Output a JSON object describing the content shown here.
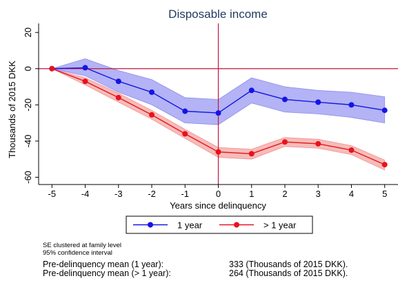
{
  "chart_data": {
    "type": "line",
    "title": "Disposable income",
    "xlabel": "Years since delinquency",
    "ylabel": "Thousands of 2015 DKK",
    "x": [
      -5,
      -4,
      -3,
      -2,
      -1,
      0,
      1,
      2,
      3,
      4,
      5
    ],
    "xlim": [
      -5.4,
      5.4
    ],
    "ylim": [
      -64,
      25
    ],
    "x_ticks": [
      -5,
      -4,
      -3,
      -2,
      -1,
      0,
      1,
      2,
      3,
      4,
      5
    ],
    "y_ticks": [
      -60,
      -40,
      -20,
      0,
      20
    ],
    "reference_lines": {
      "x": 0,
      "y": 0,
      "color": "#c0163c"
    },
    "grid": false,
    "legend_position": "bottom",
    "series": [
      {
        "name": "1 year",
        "color": "#1414e6",
        "band_color": "#9a9af2",
        "values": [
          0,
          0.5,
          -7,
          -13,
          -23.5,
          -24.5,
          -12,
          -17,
          -18.5,
          -20,
          -23
        ],
        "ci_lower": [
          0,
          -4,
          -13,
          -20,
          -30,
          -31,
          -19,
          -24,
          -25,
          -27,
          -30
        ],
        "ci_upper": [
          0,
          5.5,
          -1,
          -6,
          -16,
          -17,
          -5,
          -10,
          -12,
          -13,
          -15.5
        ]
      },
      {
        "name": "> 1 year",
        "color": "#e8121e",
        "band_color": "#f3a5a0",
        "values": [
          0,
          -7,
          -16,
          -25.5,
          -36,
          -46,
          -47,
          -40.5,
          -41.5,
          -45,
          -53
        ],
        "ci_lower": [
          0,
          -9,
          -18.5,
          -28,
          -38.5,
          -49,
          -50,
          -43,
          -44,
          -47.5,
          -56
        ],
        "ci_upper": [
          0,
          -5,
          -13.5,
          -23,
          -33.5,
          -43.5,
          -44.5,
          -38,
          -39,
          -42.5,
          -50.5
        ]
      }
    ]
  },
  "notes": {
    "line1": "SE clustered at family level",
    "line2": "95% confidence interval"
  },
  "stats": [
    {
      "label": "Pre-delinquency mean (1 year):",
      "value": "333 (Thousands of 2015 DKK)."
    },
    {
      "label": "Pre-delinquency mean (> 1 year):",
      "value": "264 (Thousands of 2015 DKK)."
    }
  ]
}
